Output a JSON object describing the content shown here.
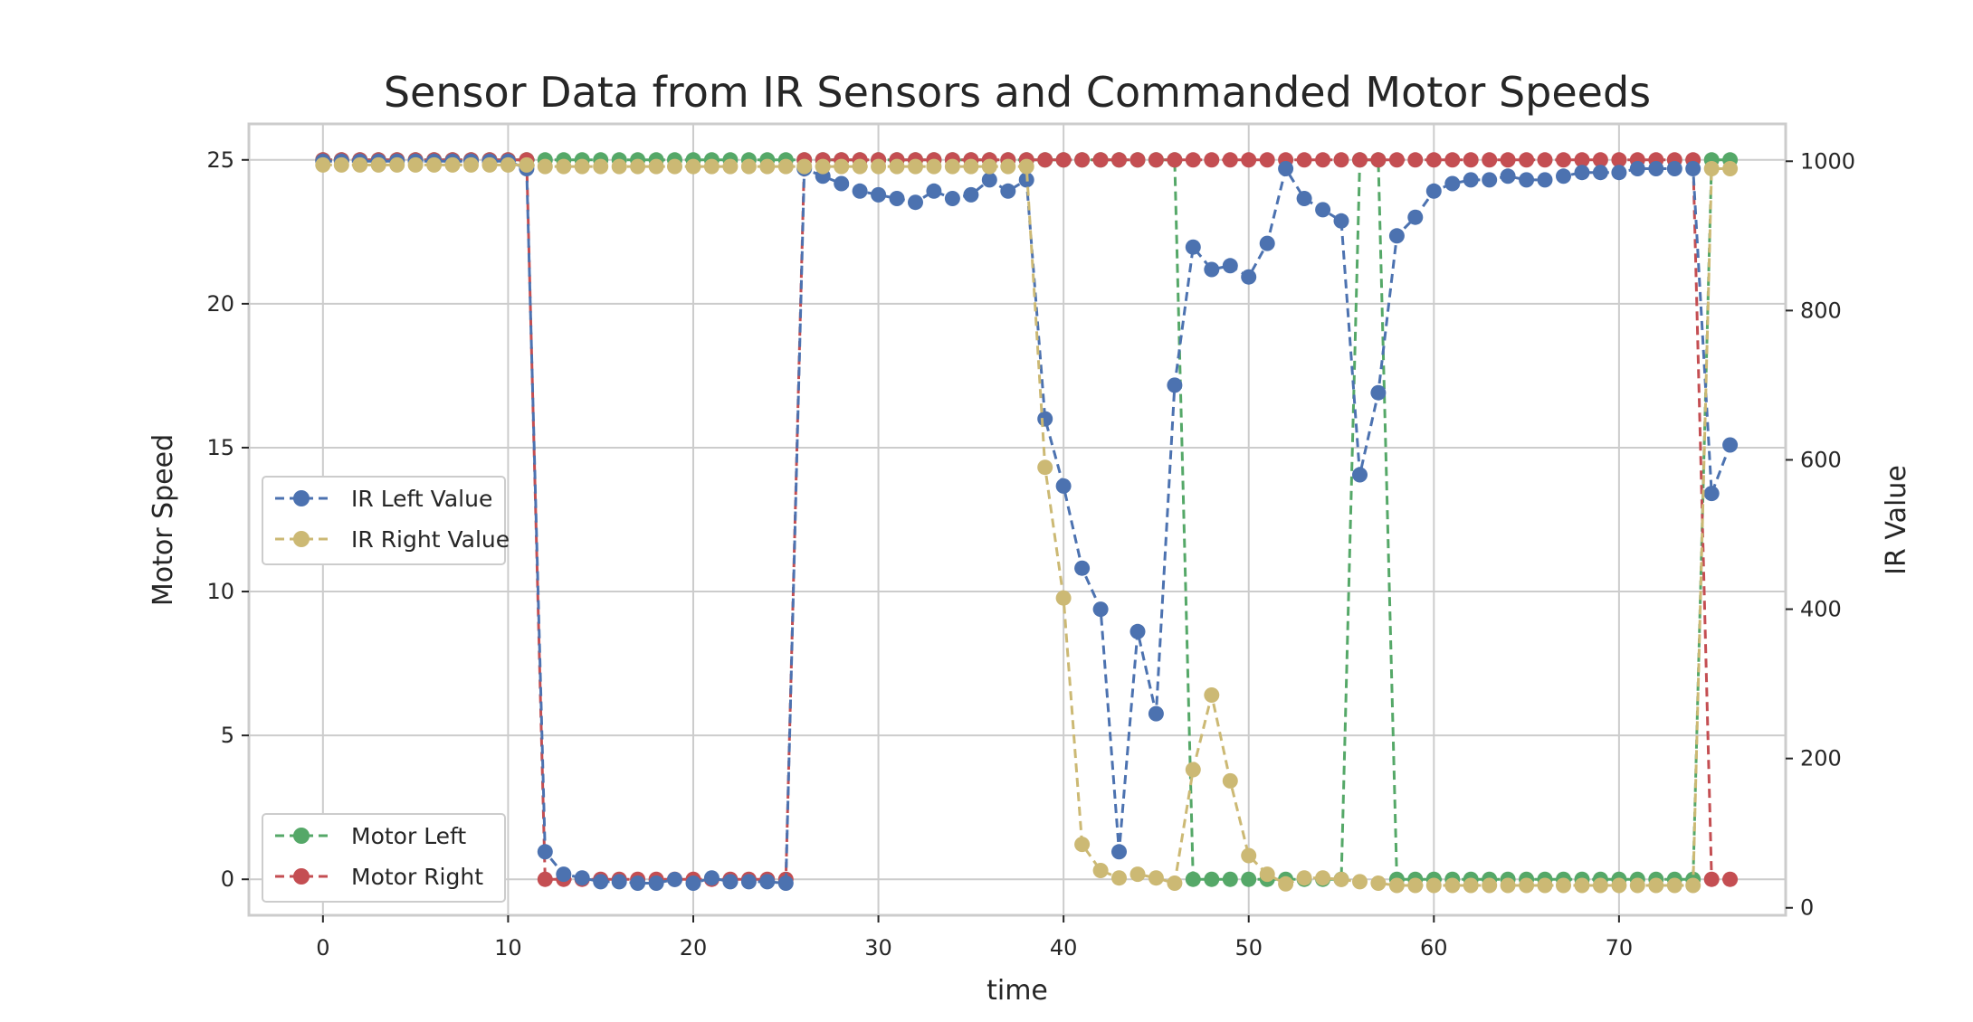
{
  "chart_data": {
    "type": "line",
    "title": "Sensor Data from IR Sensors and Commanded Motor Speeds",
    "xlabel": "time",
    "ylabel_left": "Motor Speed",
    "ylabel_right": "IR Value",
    "xlim": [
      -4,
      79
    ],
    "ylim_left": [
      -1.25,
      26.25
    ],
    "ylim_right": [
      -10,
      1050
    ],
    "xticks": [
      "0",
      "10",
      "20",
      "30",
      "40",
      "50",
      "60",
      "70"
    ],
    "yticks_left": [
      "0",
      "5",
      "10",
      "15",
      "20",
      "25"
    ],
    "yticks_right": [
      "0",
      "200",
      "400",
      "600",
      "800",
      "1000"
    ],
    "grid": true,
    "legends": [
      {
        "placement": "center-left",
        "entries": [
          "IR Left Value",
          "IR Right Value"
        ]
      },
      {
        "placement": "lower-left",
        "entries": [
          "Motor Left",
          "Motor Right"
        ]
      }
    ],
    "x": [
      0,
      1,
      2,
      3,
      4,
      5,
      6,
      7,
      8,
      9,
      10,
      11,
      12,
      13,
      14,
      15,
      16,
      17,
      18,
      19,
      20,
      21,
      22,
      23,
      24,
      25,
      26,
      27,
      28,
      29,
      30,
      31,
      32,
      33,
      34,
      35,
      36,
      37,
      38,
      39,
      40,
      41,
      42,
      43,
      44,
      45,
      46,
      47,
      48,
      49,
      50,
      51,
      52,
      53,
      54,
      55,
      56,
      57,
      58,
      59,
      60,
      61,
      62,
      63,
      64,
      65,
      66,
      67,
      68,
      69,
      70,
      71,
      72,
      73,
      74,
      75,
      76
    ],
    "series": [
      {
        "name": "Motor Left",
        "axis": "left",
        "color": "#55a868",
        "values": [
          25,
          25,
          25,
          25,
          25,
          25,
          25,
          25,
          25,
          25,
          25,
          25,
          25,
          25,
          25,
          25,
          25,
          25,
          25,
          25,
          25,
          25,
          25,
          25,
          25,
          25,
          25,
          25,
          25,
          25,
          25,
          25,
          25,
          25,
          25,
          25,
          25,
          25,
          25,
          25,
          25,
          25,
          25,
          25,
          25,
          25,
          25,
          0,
          0,
          0,
          0,
          0,
          0,
          0,
          0,
          0,
          25,
          25,
          0,
          0,
          0,
          0,
          0,
          0,
          0,
          0,
          0,
          0,
          0,
          0,
          0,
          0,
          0,
          0,
          0,
          25,
          25
        ]
      },
      {
        "name": "Motor Right",
        "axis": "left",
        "color": "#c44e52",
        "values": [
          25,
          25,
          25,
          25,
          25,
          25,
          25,
          25,
          25,
          25,
          25,
          25,
          0,
          0,
          0,
          0,
          0,
          0,
          0,
          0,
          0,
          0,
          0,
          0,
          0,
          0,
          25,
          25,
          25,
          25,
          25,
          25,
          25,
          25,
          25,
          25,
          25,
          25,
          25,
          25,
          25,
          25,
          25,
          25,
          25,
          25,
          25,
          25,
          25,
          25,
          25,
          25,
          25,
          25,
          25,
          25,
          25,
          25,
          25,
          25,
          25,
          25,
          25,
          25,
          25,
          25,
          25,
          25,
          25,
          25,
          25,
          25,
          25,
          25,
          25,
          0,
          0
        ]
      },
      {
        "name": "IR Left Value",
        "axis": "right",
        "color": "#4c72b0",
        "values": [
          1000,
          1000,
          1000,
          1000,
          1000,
          1000,
          1000,
          1000,
          1000,
          1000,
          1000,
          990,
          75,
          45,
          40,
          35,
          35,
          33,
          33,
          38,
          33,
          40,
          35,
          35,
          35,
          33,
          990,
          980,
          970,
          960,
          955,
          950,
          945,
          960,
          950,
          955,
          975,
          960,
          975,
          655,
          565,
          455,
          400,
          75,
          370,
          260,
          700,
          885,
          855,
          860,
          845,
          890,
          990,
          950,
          935,
          920,
          580,
          690,
          900,
          925,
          960,
          970,
          975,
          975,
          980,
          975,
          975,
          980,
          985,
          985,
          985,
          990,
          990,
          990,
          990,
          555,
          620
        ]
      },
      {
        "name": "IR Right Value",
        "axis": "right",
        "color": "#ccb974",
        "values": [
          995,
          995,
          995,
          995,
          995,
          995,
          995,
          995,
          995,
          995,
          995,
          995,
          993,
          993,
          993,
          993,
          993,
          993,
          993,
          993,
          993,
          993,
          993,
          993,
          993,
          993,
          993,
          993,
          993,
          993,
          993,
          993,
          993,
          993,
          993,
          993,
          993,
          993,
          993,
          590,
          415,
          85,
          50,
          40,
          45,
          40,
          33,
          185,
          285,
          170,
          70,
          45,
          32,
          40,
          40,
          38,
          35,
          33,
          30,
          30,
          30,
          30,
          30,
          30,
          30,
          30,
          30,
          30,
          30,
          30,
          30,
          30,
          30,
          30,
          30,
          990,
          990
        ]
      }
    ]
  }
}
